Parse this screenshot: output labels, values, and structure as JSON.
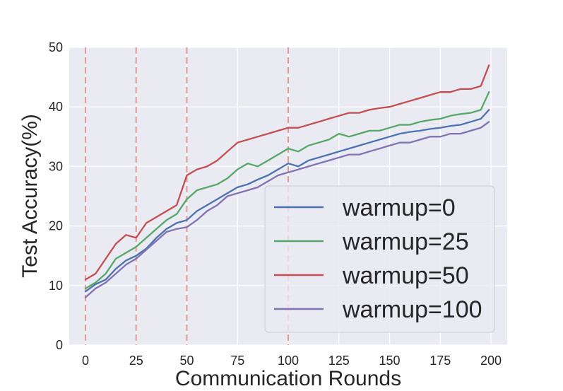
{
  "chart_data": {
    "type": "line",
    "xlabel": "Communication Rounds",
    "ylabel": "Test Accuracy(%)",
    "xlim": [
      -8,
      208
    ],
    "ylim": [
      0,
      50
    ],
    "xticks": [
      0,
      25,
      50,
      75,
      100,
      125,
      150,
      175,
      200
    ],
    "yticks": [
      0,
      10,
      20,
      30,
      40,
      50
    ],
    "grid": true,
    "legend_position": "lower-right",
    "vlines": [
      0,
      25,
      50,
      100
    ],
    "vline_color": "#e39a95",
    "series": [
      {
        "name": "warmup=0",
        "color": "#4c72b0",
        "x": [
          0,
          5,
          10,
          15,
          20,
          25,
          30,
          35,
          40,
          45,
          50,
          55,
          60,
          65,
          70,
          75,
          80,
          85,
          90,
          95,
          100,
          105,
          110,
          115,
          120,
          125,
          130,
          135,
          140,
          145,
          150,
          155,
          160,
          165,
          170,
          175,
          180,
          185,
          190,
          195,
          199
        ],
        "y": [
          9.0,
          10.2,
          11.0,
          12.8,
          14.2,
          15.0,
          16.2,
          18.0,
          19.5,
          20.5,
          21.0,
          22.5,
          23.5,
          24.5,
          25.5,
          26.5,
          27.0,
          27.8,
          28.5,
          29.5,
          30.5,
          30.0,
          31.0,
          31.5,
          32.0,
          32.5,
          33.0,
          33.5,
          34.0,
          34.5,
          35.0,
          35.5,
          35.8,
          36.0,
          36.3,
          36.5,
          36.8,
          37.0,
          37.5,
          38.0,
          39.5
        ]
      },
      {
        "name": "warmup=25",
        "color": "#55a868",
        "x": [
          0,
          5,
          10,
          15,
          20,
          25,
          30,
          35,
          40,
          45,
          50,
          55,
          60,
          65,
          70,
          75,
          80,
          85,
          90,
          95,
          100,
          105,
          110,
          115,
          120,
          125,
          130,
          135,
          140,
          145,
          150,
          155,
          160,
          165,
          170,
          175,
          180,
          185,
          190,
          195,
          199
        ],
        "y": [
          9.5,
          10.5,
          12.0,
          14.5,
          15.5,
          16.5,
          18.0,
          19.5,
          21.0,
          22.0,
          24.5,
          26.0,
          26.5,
          27.0,
          28.0,
          29.5,
          30.5,
          30.0,
          31.0,
          32.0,
          33.0,
          32.5,
          33.5,
          34.0,
          34.5,
          35.5,
          35.0,
          35.5,
          36.0,
          36.0,
          36.5,
          37.0,
          37.0,
          37.5,
          37.8,
          38.0,
          38.5,
          38.8,
          39.0,
          39.5,
          42.5
        ]
      },
      {
        "name": "warmup=50",
        "color": "#c44e52",
        "x": [
          0,
          5,
          10,
          15,
          20,
          25,
          30,
          35,
          40,
          45,
          50,
          55,
          60,
          65,
          70,
          75,
          80,
          85,
          90,
          95,
          100,
          105,
          110,
          115,
          120,
          125,
          130,
          135,
          140,
          145,
          150,
          155,
          160,
          165,
          170,
          175,
          180,
          185,
          190,
          195,
          199
        ],
        "y": [
          11.0,
          12.0,
          14.5,
          17.0,
          18.5,
          18.0,
          20.5,
          21.5,
          22.5,
          23.5,
          28.5,
          29.5,
          30.0,
          31.0,
          32.5,
          34.0,
          34.5,
          35.0,
          35.5,
          36.0,
          36.5,
          36.5,
          37.0,
          37.5,
          38.0,
          38.5,
          39.0,
          39.0,
          39.5,
          39.8,
          40.0,
          40.5,
          41.0,
          41.5,
          42.0,
          42.5,
          42.5,
          43.0,
          43.0,
          43.5,
          47.0
        ]
      },
      {
        "name": "warmup=100",
        "color": "#8172b2",
        "x": [
          0,
          5,
          10,
          15,
          20,
          25,
          30,
          35,
          40,
          45,
          50,
          55,
          60,
          65,
          70,
          75,
          80,
          85,
          90,
          95,
          100,
          105,
          110,
          115,
          120,
          125,
          130,
          135,
          140,
          145,
          150,
          155,
          160,
          165,
          170,
          175,
          180,
          185,
          190,
          195,
          199
        ],
        "y": [
          8.0,
          9.5,
          10.5,
          12.0,
          13.5,
          14.5,
          16.0,
          17.5,
          19.0,
          19.5,
          19.8,
          21.0,
          22.5,
          23.5,
          25.0,
          25.5,
          26.0,
          26.5,
          27.5,
          28.5,
          29.0,
          29.5,
          30.0,
          30.5,
          31.0,
          31.5,
          32.0,
          32.0,
          32.5,
          33.0,
          33.5,
          34.0,
          34.0,
          34.5,
          35.0,
          35.0,
          35.5,
          35.5,
          36.0,
          36.5,
          37.5
        ]
      }
    ]
  }
}
